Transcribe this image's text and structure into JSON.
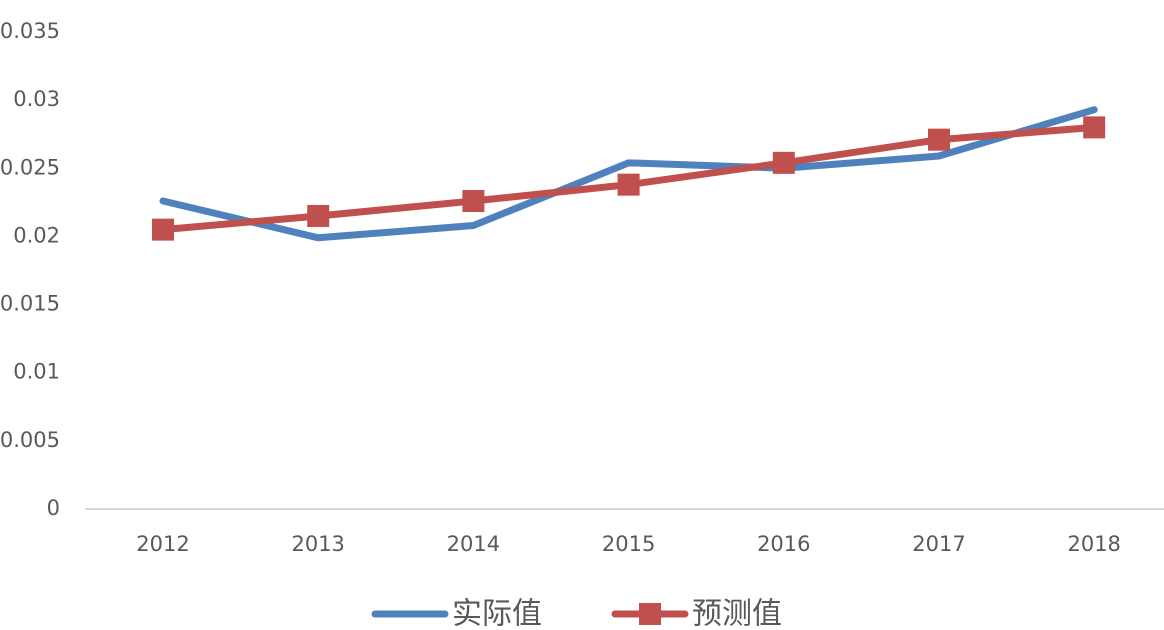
{
  "chart_data": {
    "type": "line",
    "title": "",
    "xlabel": "",
    "ylabel": "",
    "categories": [
      "2012",
      "2013",
      "2014",
      "2015",
      "2016",
      "2017",
      "2018"
    ],
    "y_ticks": [
      "0",
      "0.005",
      "0.01",
      "0.015",
      "0.02",
      "0.025",
      "0.03",
      "0.035"
    ],
    "ylim": [
      0,
      0.035
    ],
    "grid": false,
    "legend_position": "bottom",
    "series": [
      {
        "name": "实际值",
        "color": "#4F81BD",
        "marker": "none",
        "values": [
          0.0226,
          0.0199,
          0.0208,
          0.0254,
          0.025,
          0.0259,
          0.0293
        ]
      },
      {
        "name": "预测值",
        "color": "#C0504D",
        "marker": "square",
        "values": [
          0.0205,
          0.0215,
          0.0226,
          0.0238,
          0.0254,
          0.0271,
          0.028
        ]
      }
    ]
  }
}
